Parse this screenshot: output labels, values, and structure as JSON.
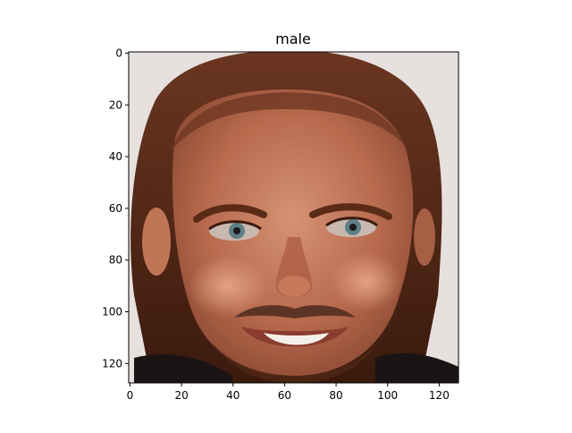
{
  "figure": {
    "title": "male",
    "image_description_tag": "face-photo"
  },
  "axes": {
    "x_ticks": [
      0,
      20,
      40,
      60,
      80,
      100,
      120
    ],
    "y_ticks": [
      0,
      20,
      40,
      60,
      80,
      100,
      120
    ],
    "x_range": [
      -0.5,
      127.5
    ],
    "y_range": [
      127.5,
      -0.5
    ],
    "y_inverted": true,
    "grid": false
  },
  "colors": {
    "background": "#e6e1df",
    "hair": "#5a2c18",
    "hair_dark": "#3a1a0e",
    "skin": "#b86a4d",
    "skin_light": "#d08a6a",
    "skin_shadow": "#8d4a34",
    "eye_white": "#c9b8b0",
    "iris": "#5d7f86",
    "pupil": "#1e1a1a",
    "mustache": "#5c3426",
    "teeth": "#f3f0ea",
    "lip": "#8b3b2f",
    "shirt": "#1a1414",
    "axis": "#000000"
  }
}
